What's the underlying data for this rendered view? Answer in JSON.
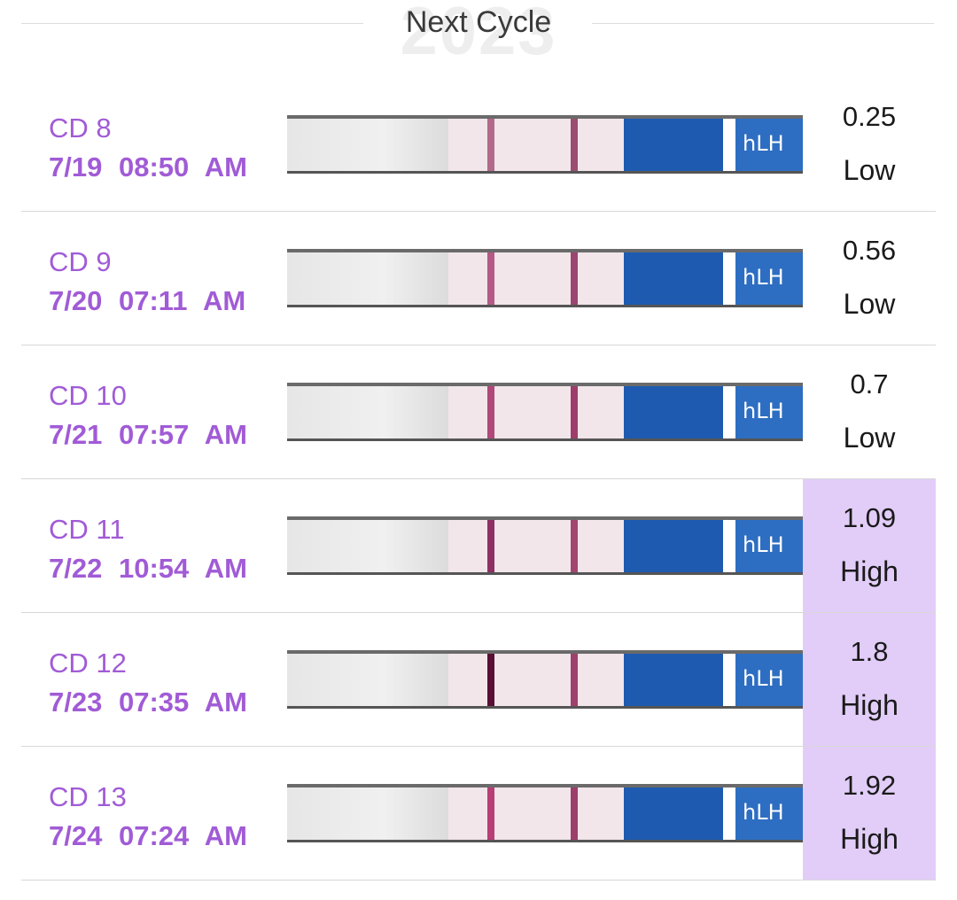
{
  "header": {
    "title": "Next Cycle",
    "watermark": "2023"
  },
  "strip_text": "hLH",
  "colors": {
    "accent": "#a15bd6",
    "high_bg": "#e2cdf8"
  },
  "entries": [
    {
      "cd": "CD 8",
      "date": "7/19",
      "time": "08:50 AM",
      "value": "0.25",
      "level": "Low"
    },
    {
      "cd": "CD 9",
      "date": "7/20",
      "time": "07:11 AM",
      "value": "0.56",
      "level": "Low"
    },
    {
      "cd": "CD 10",
      "date": "7/21",
      "time": "07:57 AM",
      "value": "0.7",
      "level": "Low"
    },
    {
      "cd": "CD 11",
      "date": "7/22",
      "time": "10:54 AM",
      "value": "1.09",
      "level": "High"
    },
    {
      "cd": "CD 12",
      "date": "7/23",
      "time": "07:35 AM",
      "value": "1.8",
      "level": "High"
    },
    {
      "cd": "CD 13",
      "date": "7/24",
      "time": "07:24 AM",
      "value": "1.92",
      "level": "High"
    }
  ]
}
